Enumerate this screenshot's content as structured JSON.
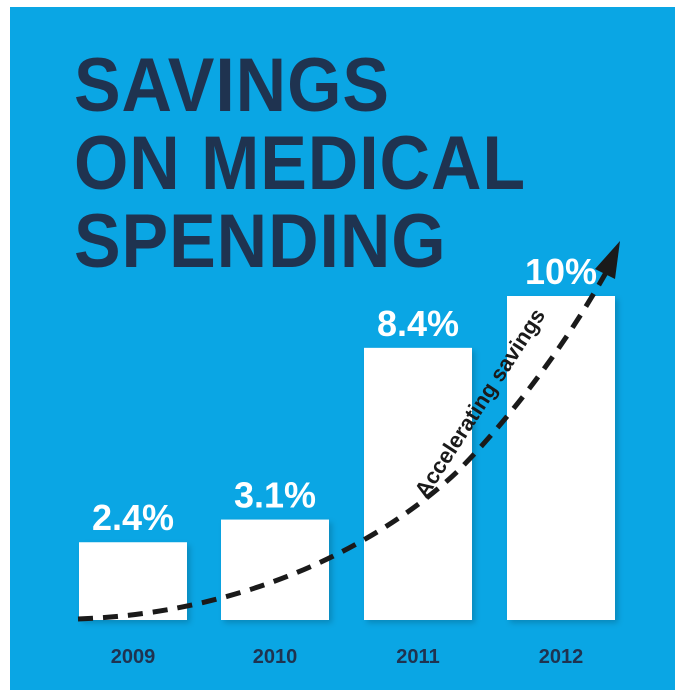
{
  "colors": {
    "background": "#0aa6e4",
    "title": "#1f3350",
    "bar": "#ffffff",
    "value_label": "#ffffff",
    "year_label": "#1f3350",
    "trend_line": "#1a1a1a"
  },
  "chart_data": {
    "type": "bar",
    "title_lines": [
      "SAVINGS",
      "ON MEDICAL",
      "SPENDING"
    ],
    "categories": [
      "2009",
      "2010",
      "2011",
      "2012"
    ],
    "values": [
      2.4,
      3.1,
      8.4,
      10
    ],
    "value_labels": [
      "2.4%",
      "3.1%",
      "8.4%",
      "10%"
    ],
    "ylim": [
      0,
      10
    ],
    "grid": false,
    "annotation": "Accelerating savings"
  }
}
